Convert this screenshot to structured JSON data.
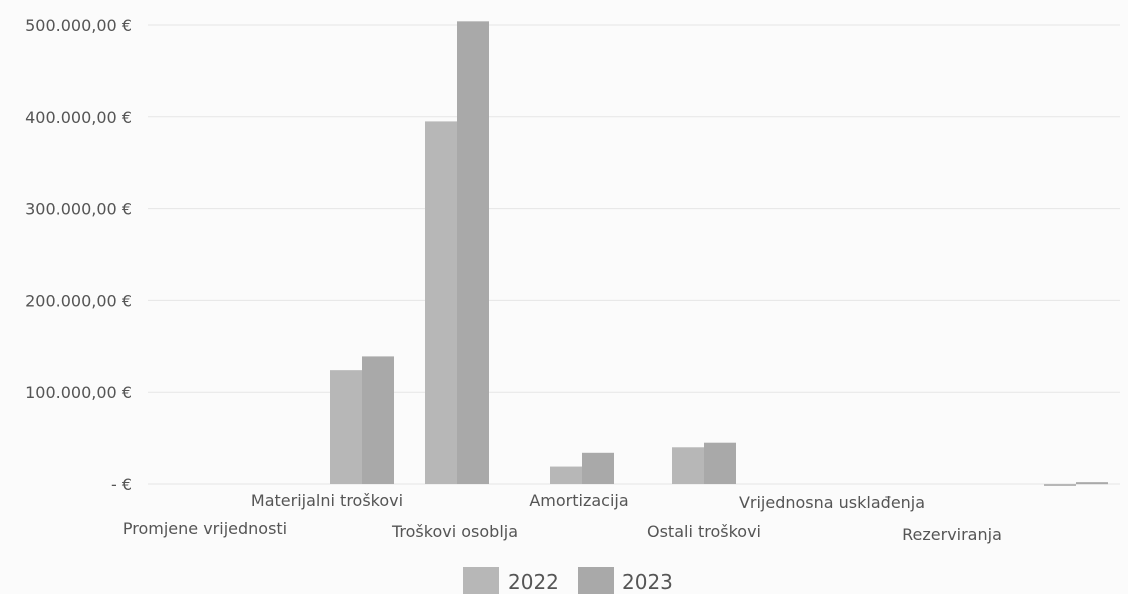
{
  "chart_data": {
    "type": "bar",
    "title": "",
    "xlabel": "",
    "ylabel": "",
    "categories": [
      "Promjene vrijednosti",
      "Materijalni troškovi",
      "Troškovi osoblja",
      "Amortizacija",
      "Ostali troškovi",
      "Vrijednosna usklađenja",
      "Rezerviranja",
      ""
    ],
    "series": [
      {
        "name": "2022",
        "values": [
          0,
          124000,
          395000,
          19000,
          40000,
          0,
          0,
          -1500
        ],
        "color": "#b7b7b7"
      },
      {
        "name": "2023",
        "values": [
          0,
          139000,
          504000,
          34000,
          45000,
          0,
          0,
          2000
        ],
        "color": "#a9a9a9"
      }
    ],
    "ylim": [
      0,
      500000
    ],
    "yticks": [
      0,
      100000,
      200000,
      300000,
      400000,
      500000
    ],
    "ytick_labels": [
      "-  €",
      "100.000,00 €",
      "200.000,00 €",
      "300.000,00 €",
      "400.000,00 €",
      "500.000,00 €"
    ],
    "grid": true,
    "legend_position": "bottom-center"
  }
}
